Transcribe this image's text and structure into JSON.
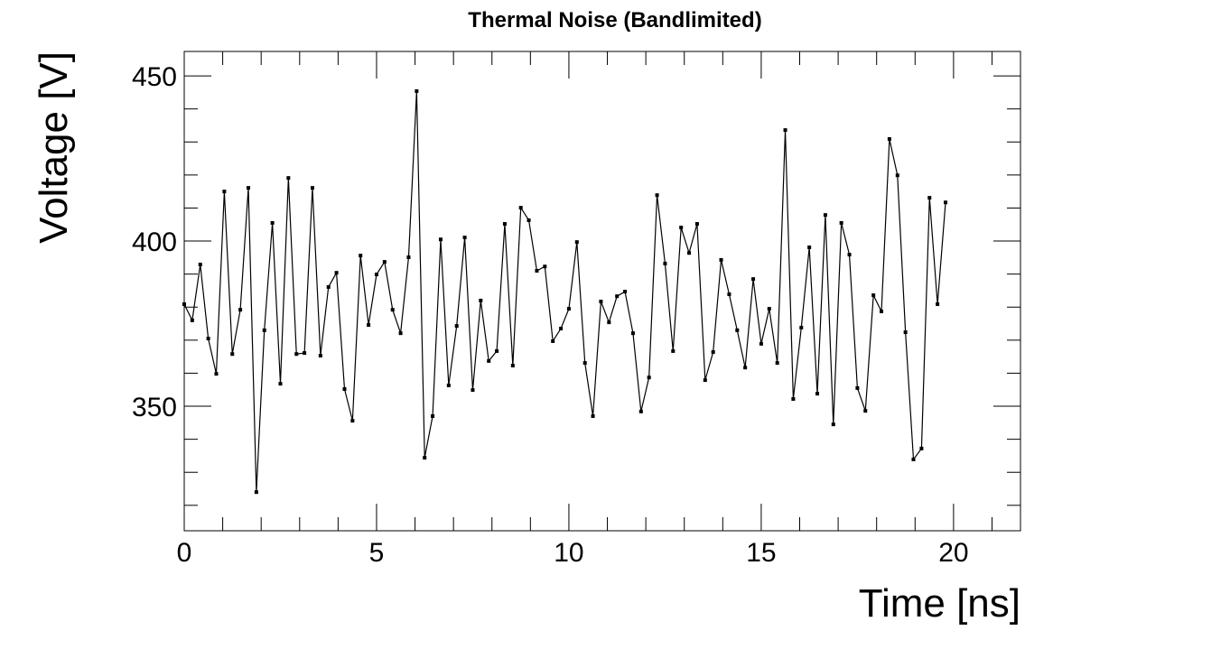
{
  "chart_data": {
    "type": "line",
    "title": "Thermal Noise (Bandlimited)",
    "x_label": "Time [ns]",
    "y_label": "Voltage [V]",
    "x": [
      0,
      0.208,
      0.417,
      0.625,
      0.833,
      1.042,
      1.25,
      1.458,
      1.667,
      1.875,
      2.083,
      2.292,
      2.5,
      2.708,
      2.917,
      3.125,
      3.333,
      3.542,
      3.75,
      3.958,
      4.167,
      4.375,
      4.583,
      4.792,
      5,
      5.208,
      5.417,
      5.625,
      5.833,
      6.042,
      6.25,
      6.458,
      6.667,
      6.875,
      7.083,
      7.292,
      7.5,
      7.708,
      7.917,
      8.125,
      8.333,
      8.542,
      8.75,
      8.958,
      9.167,
      9.375,
      9.583,
      9.792,
      10,
      10.208,
      10.417,
      10.625,
      10.833,
      11.042,
      11.25,
      11.458,
      11.667,
      11.875,
      12.083,
      12.292,
      12.5,
      12.708,
      12.917,
      13.125,
      13.333,
      13.542,
      13.75,
      13.958,
      14.167,
      14.375,
      14.583,
      14.792,
      15,
      15.208,
      15.417,
      15.625,
      15.833,
      16.042,
      16.25,
      16.458,
      16.667,
      16.875,
      17.083,
      17.292,
      17.5,
      17.708,
      17.917,
      18.125,
      18.333,
      18.542,
      18.75,
      18.958,
      19.167,
      19.375,
      19.583,
      19.792
    ],
    "series": [
      {
        "color": "#000000",
        "values": [
          380.9,
          376,
          392.9,
          370.5,
          359.8,
          415,
          365.8,
          379.2,
          416.1,
          324,
          373,
          405.5,
          356.8,
          419.1,
          365.8,
          366.1,
          416.1,
          365.3,
          386.1,
          390.4,
          355.2,
          345.6,
          395.6,
          374.6,
          389.9,
          393.7,
          379.2,
          372.1,
          395.1,
          445.4,
          334.4,
          347,
          400.5,
          356.3,
          374.3,
          401.1,
          354.9,
          382,
          363.7,
          366.7,
          405.2,
          362.3,
          410.1,
          406.3,
          391,
          392.3,
          369.7,
          373.5,
          379.5,
          399.7,
          363.1,
          347,
          381.7,
          375.4,
          383.3,
          384.7,
          372.1,
          348.4,
          358.7,
          413.9,
          393.2,
          366.7,
          404.1,
          396.4,
          405.2,
          357.9,
          366.4,
          394.3,
          383.9,
          373,
          361.7,
          388.5,
          368.9,
          379.5,
          363.1,
          433.6,
          352.2,
          373.8,
          398.1,
          353.8,
          407.9,
          344.5,
          405.5,
          395.9,
          355.5,
          348.6,
          383.6,
          378.7,
          430.9,
          419.9,
          372.4,
          333.9,
          337.2,
          413.1,
          380.9,
          411.7
        ]
      }
    ],
    "xlim": [
      0,
      21.74
    ],
    "xticks": [
      0,
      5,
      10,
      15,
      20
    ],
    "xminorticks": [
      1,
      2,
      3,
      4,
      6,
      7,
      8,
      9,
      11,
      12,
      13,
      14,
      16,
      17,
      18,
      19,
      21
    ],
    "ylim": [
      312.3,
      457.4
    ],
    "yticks": [
      350,
      400,
      450
    ],
    "yminorticks": [
      320,
      330,
      340,
      360,
      370,
      380,
      390,
      410,
      420,
      430,
      440
    ]
  }
}
